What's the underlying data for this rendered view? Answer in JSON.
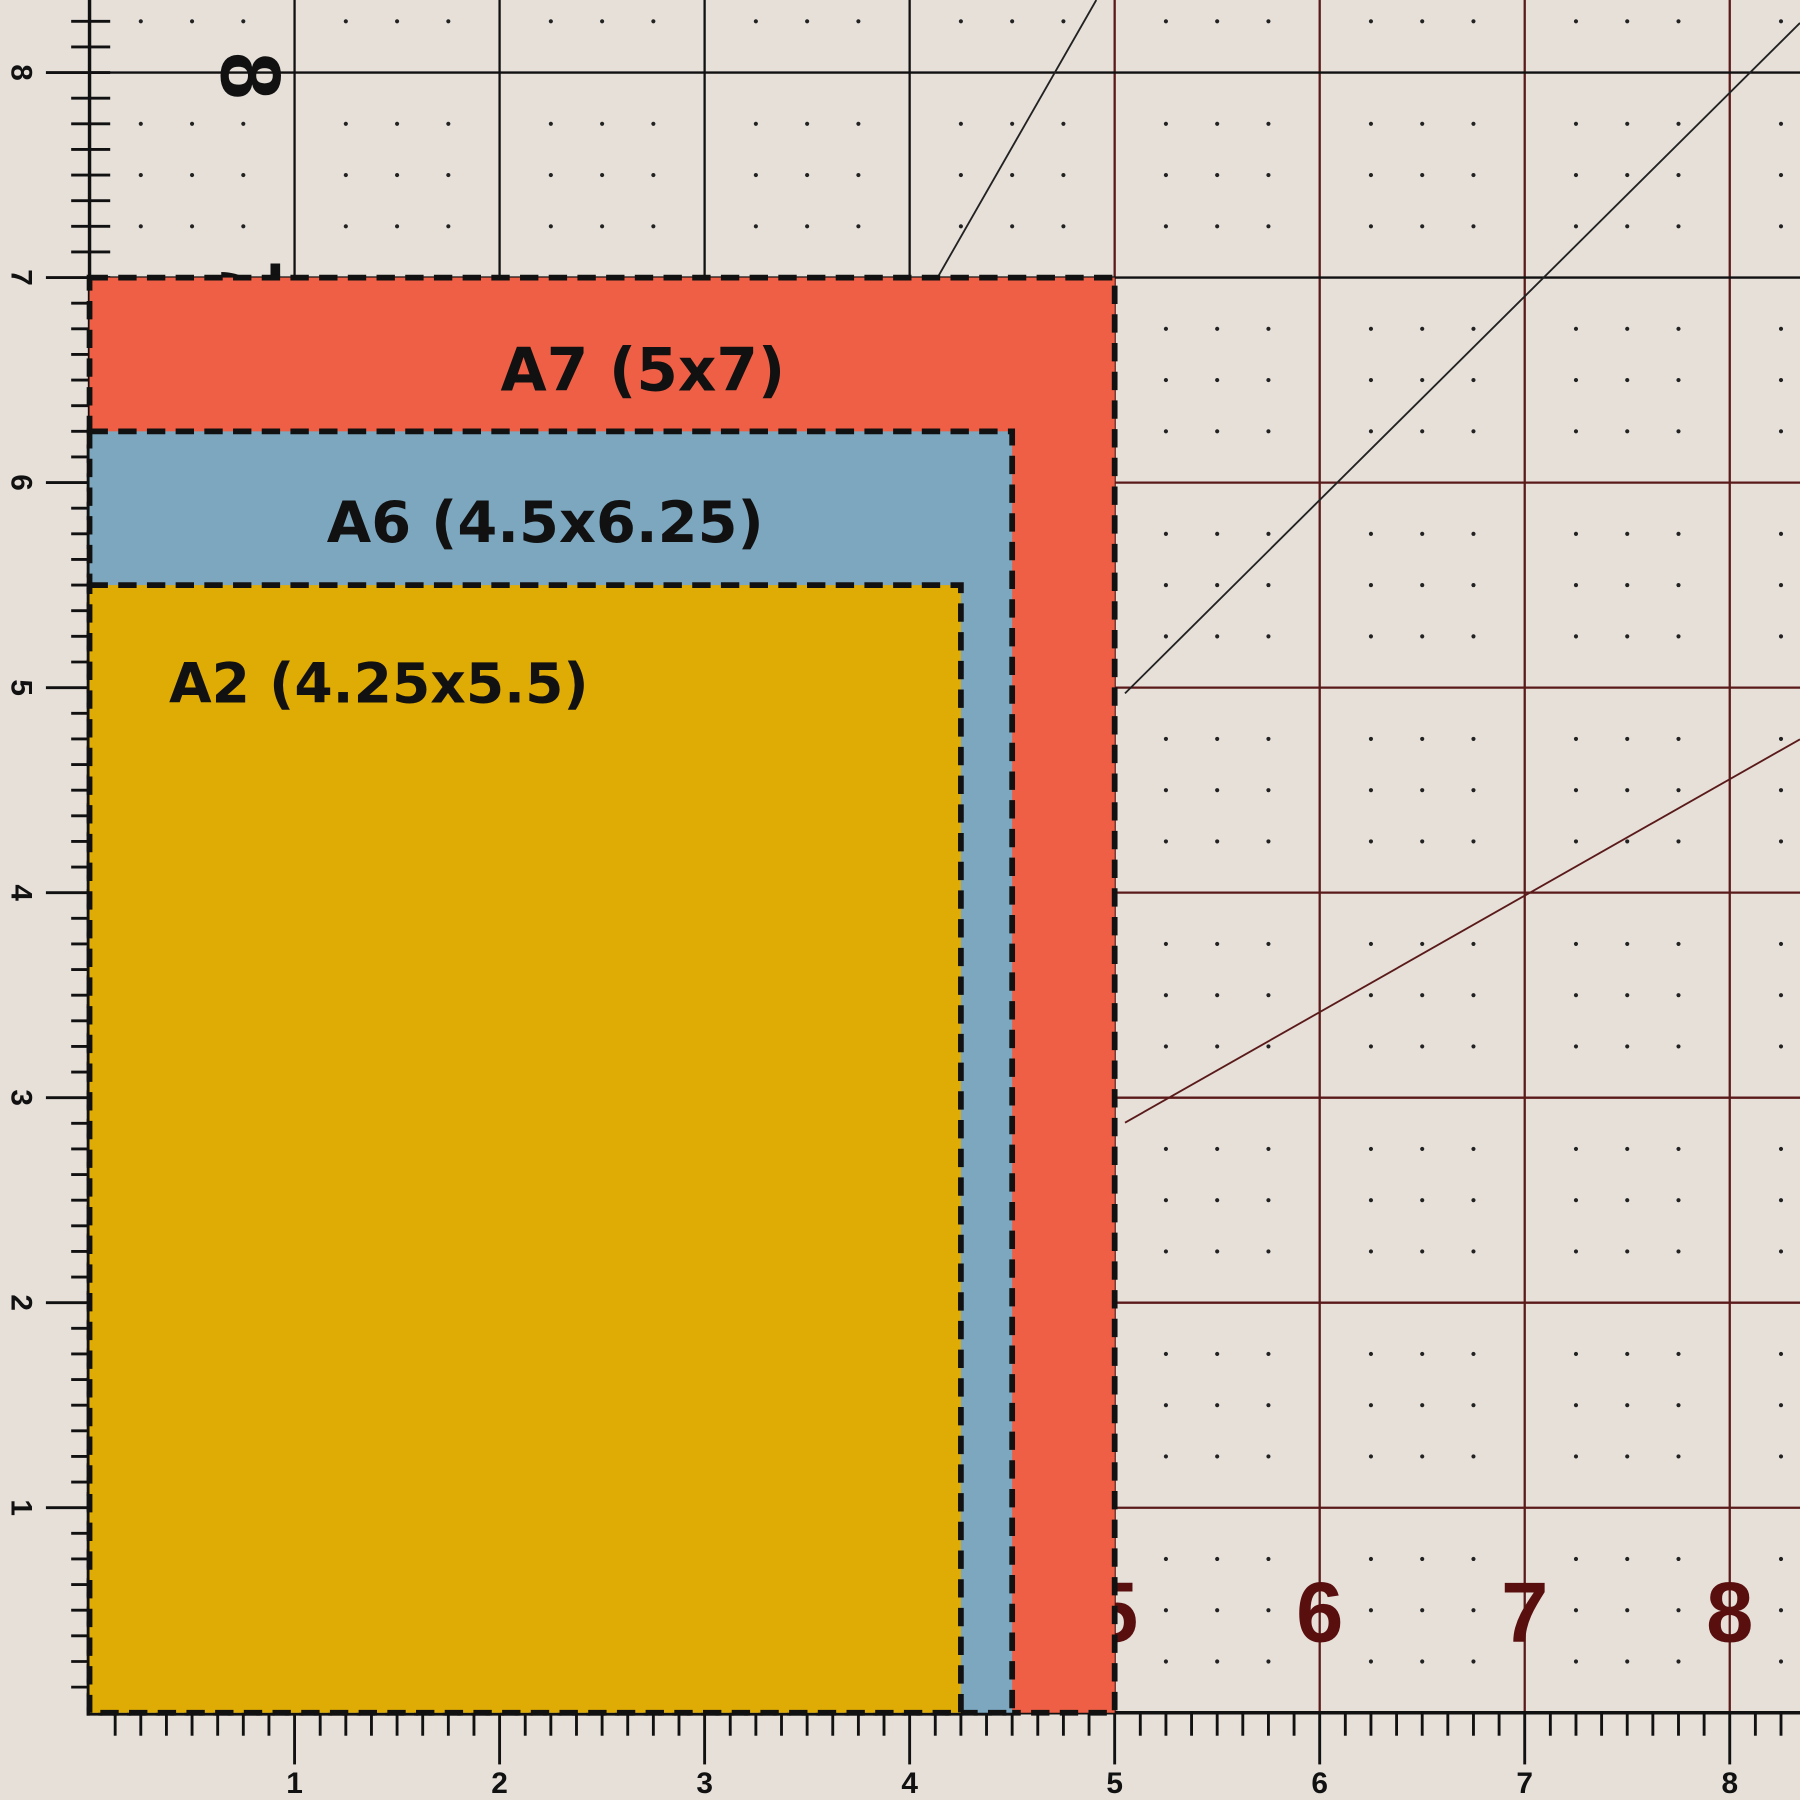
{
  "envelopes": [
    {
      "name": "A7",
      "label": "A7 (5x7)",
      "width_in": 5,
      "height_in": 7,
      "color": "#ee5f45"
    },
    {
      "name": "A6",
      "label": "A6 (4.5x6.25)",
      "width_in": 4.5,
      "height_in": 6.25,
      "color": "#7ca7bf"
    },
    {
      "name": "A2",
      "label": "A2 (4.25x5.5)",
      "width_in": 4.25,
      "height_in": 5.5,
      "color": "#dfab05"
    }
  ],
  "ruler": {
    "bottom_labels": [
      "1",
      "2",
      "3",
      "4",
      "5",
      "6",
      "7",
      "8"
    ],
    "left_labels": [
      "1",
      "2",
      "3",
      "4",
      "5",
      "6",
      "7",
      "8"
    ]
  },
  "mat_numbers": {
    "bottom": [
      "5",
      "6",
      "7",
      "8"
    ],
    "left": [
      "8",
      "7"
    ]
  },
  "colors": {
    "background": "#e6e0d9",
    "grid_left": "#111111",
    "grid_right": "#5a1a1a",
    "mat_number": "#5a0f0f"
  }
}
